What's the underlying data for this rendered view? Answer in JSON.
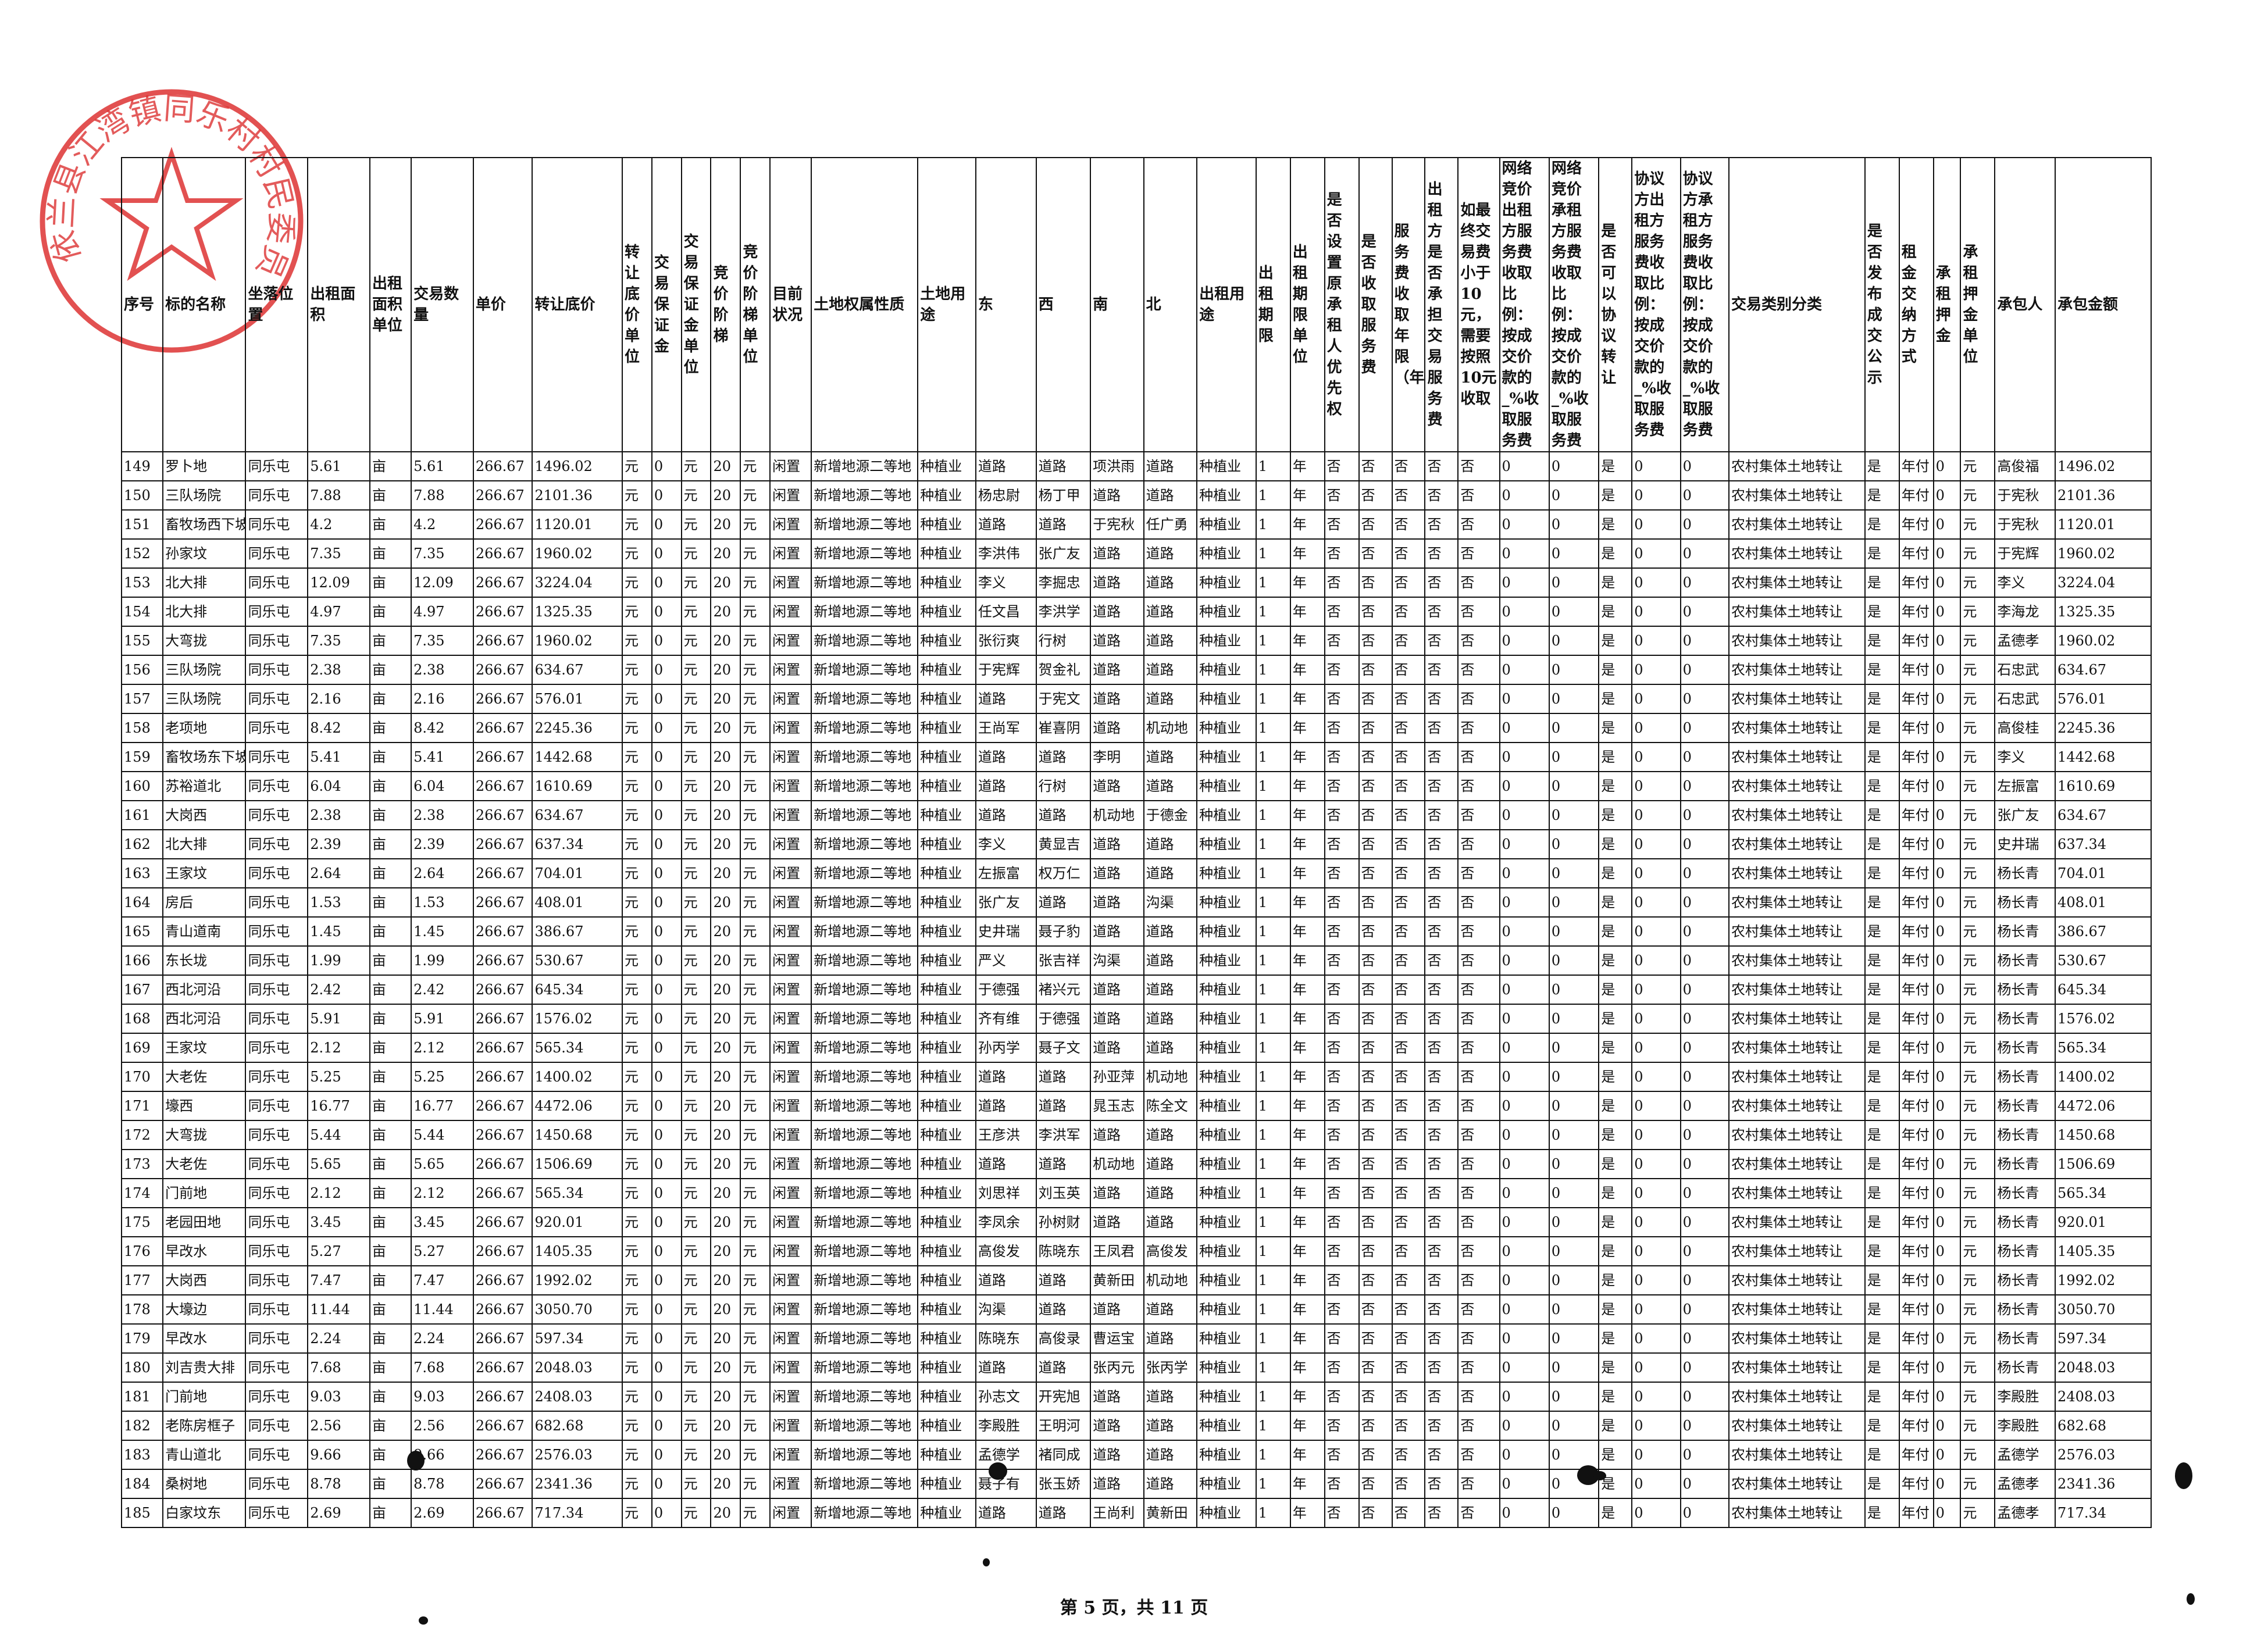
{
  "headers": [
    "序号",
    "标的名称",
    "坐落位置",
    "出租面积",
    "出租面积单位",
    "交易数量",
    "单价",
    "转让底价",
    "转让底价单位",
    "交易保证金",
    "交易保证金单位",
    "竞价阶梯",
    "竞价阶梯单位",
    "目前状况",
    "土地权属性质",
    "土地用途",
    "东",
    "西",
    "南",
    "北",
    "出租用途",
    "出租期限",
    "出租期限单位",
    "是否设置原承租人优先权",
    "是否收取服务费",
    "服务费收取年限（年）",
    "出租方是否承担交易服务费",
    "如最终交易费小于10元，需要按照10元收取",
    "网络竞价出租方服务费收取比例：按成交价款的_%收取服务费",
    "网络竞价承租方服务费收取比例：按成交价款的_%收取服务费",
    "是否可以协议转让",
    "协议方出租方服务费收取比例：按成交价款的_%收取服务费",
    "协议方承租方服务费收取比例：按成交价款的_%收取服务费",
    "交易类别分类",
    "是否发布成交公示",
    "租金交纳方式",
    "承租押金",
    "承租押金单位",
    "承包人",
    "承包金额"
  ],
  "common": {
    "loc": "同乐屯",
    "unit": "亩",
    "price": "266.67",
    "yuan": "元",
    "zero": "0",
    "twenty": "20",
    "status": "闲置",
    "nature": "新增地源二等地",
    "use": "种植业",
    "one": "1",
    "year": "年",
    "no": "否",
    "yes": "是",
    "category": "农村集体土地转让",
    "pay": "年付"
  },
  "rows": [
    [
      "149",
      "罗卜地",
      "5.61",
      "1496.02",
      "道路",
      "道路",
      "项洪雨",
      "道路",
      "高俊福"
    ],
    [
      "150",
      "三队场院",
      "7.88",
      "2101.36",
      "杨忠尉",
      "杨丁甲",
      "道路",
      "道路",
      "于宪秋"
    ],
    [
      "151",
      "畜牧场西下坡",
      "4.2",
      "1120.01",
      "道路",
      "道路",
      "于宪秋",
      "任广勇",
      "于宪秋"
    ],
    [
      "152",
      "孙家坟",
      "7.35",
      "1960.02",
      "李洪伟",
      "张广友",
      "道路",
      "道路",
      "于宪辉"
    ],
    [
      "153",
      "北大排",
      "12.09",
      "3224.04",
      "李义",
      "李掘忠",
      "道路",
      "道路",
      "李义"
    ],
    [
      "154",
      "北大排",
      "4.97",
      "1325.35",
      "任文昌",
      "李洪学",
      "道路",
      "道路",
      "李海龙"
    ],
    [
      "155",
      "大弯拢",
      "7.35",
      "1960.02",
      "张衍爽",
      "行树",
      "道路",
      "道路",
      "孟德孝"
    ],
    [
      "156",
      "三队场院",
      "2.38",
      "634.67",
      "于宪辉",
      "贺金礼",
      "道路",
      "道路",
      "石忠武"
    ],
    [
      "157",
      "三队场院",
      "2.16",
      "576.01",
      "道路",
      "于宪文",
      "道路",
      "道路",
      "石忠武"
    ],
    [
      "158",
      "老项地",
      "8.42",
      "2245.36",
      "王尚军",
      "崔喜阴",
      "道路",
      "机动地",
      "高俊桂"
    ],
    [
      "159",
      "畜牧场东下坡",
      "5.41",
      "1442.68",
      "道路",
      "道路",
      "李明",
      "道路",
      "李义"
    ],
    [
      "160",
      "苏裕道北",
      "6.04",
      "1610.69",
      "道路",
      "行树",
      "道路",
      "道路",
      "左振富"
    ],
    [
      "161",
      "大岗西",
      "2.38",
      "634.67",
      "道路",
      "道路",
      "机动地",
      "于德金",
      "张广友"
    ],
    [
      "162",
      "北大排",
      "2.39",
      "637.34",
      "李义",
      "黄显吉",
      "道路",
      "道路",
      "史井瑞"
    ],
    [
      "163",
      "王家坟",
      "2.64",
      "704.01",
      "左振富",
      "权万仁",
      "道路",
      "道路",
      "杨长青"
    ],
    [
      "164",
      "房后",
      "1.53",
      "408.01",
      "张广友",
      "道路",
      "道路",
      "沟渠",
      "杨长青"
    ],
    [
      "165",
      "青山道南",
      "1.45",
      "386.67",
      "史井瑞",
      "聂子豹",
      "道路",
      "道路",
      "杨长青"
    ],
    [
      "166",
      "东长垅",
      "1.99",
      "530.67",
      "严义",
      "张吉祥",
      "沟渠",
      "道路",
      "杨长青"
    ],
    [
      "167",
      "西北河沿",
      "2.42",
      "645.34",
      "于德强",
      "褚兴元",
      "道路",
      "道路",
      "杨长青"
    ],
    [
      "168",
      "西北河沿",
      "5.91",
      "1576.02",
      "齐有维",
      "于德强",
      "道路",
      "道路",
      "杨长青"
    ],
    [
      "169",
      "王家坟",
      "2.12",
      "565.34",
      "孙丙学",
      "聂子文",
      "道路",
      "道路",
      "杨长青"
    ],
    [
      "170",
      "大老佐",
      "5.25",
      "1400.02",
      "道路",
      "道路",
      "孙亚萍",
      "机动地",
      "杨长青"
    ],
    [
      "171",
      "壕西",
      "16.77",
      "4472.06",
      "道路",
      "道路",
      "晁玉志",
      "陈全文",
      "杨长青"
    ],
    [
      "172",
      "大弯拢",
      "5.44",
      "1450.68",
      "王彦洪",
      "李洪军",
      "道路",
      "道路",
      "杨长青"
    ],
    [
      "173",
      "大老佐",
      "5.65",
      "1506.69",
      "道路",
      "道路",
      "机动地",
      "道路",
      "杨长青"
    ],
    [
      "174",
      "门前地",
      "2.12",
      "565.34",
      "刘思祥",
      "刘玉英",
      "道路",
      "道路",
      "杨长青"
    ],
    [
      "175",
      "老园田地",
      "3.45",
      "920.01",
      "李凤余",
      "孙树财",
      "道路",
      "道路",
      "杨长青"
    ],
    [
      "176",
      "早改水",
      "5.27",
      "1405.35",
      "高俊发",
      "陈晓东",
      "王凤君",
      "高俊发",
      "杨长青"
    ],
    [
      "177",
      "大岗西",
      "7.47",
      "1992.02",
      "道路",
      "道路",
      "黄新田",
      "机动地",
      "杨长青"
    ],
    [
      "178",
      "大壕边",
      "11.44",
      "3050.70",
      "沟渠",
      "道路",
      "道路",
      "道路",
      "杨长青"
    ],
    [
      "179",
      "早改水",
      "2.24",
      "597.34",
      "陈晓东",
      "高俊录",
      "曹运宝",
      "道路",
      "杨长青"
    ],
    [
      "180",
      "刘吉贵大排",
      "7.68",
      "2048.03",
      "道路",
      "道路",
      "张丙元",
      "张丙学",
      "杨长青"
    ],
    [
      "181",
      "门前地",
      "9.03",
      "2408.03",
      "孙志文",
      "开宪旭",
      "道路",
      "道路",
      "李殿胜"
    ],
    [
      "182",
      "老陈房框子",
      "2.56",
      "682.68",
      "李殿胜",
      "王明河",
      "道路",
      "道路",
      "李殿胜"
    ],
    [
      "183",
      "青山道北",
      "9.66",
      "2576.03",
      "孟德学",
      "褚同成",
      "道路",
      "道路",
      "孟德学"
    ],
    [
      "184",
      "桑树地",
      "8.78",
      "2341.36",
      "聂子有",
      "张玉娇",
      "道路",
      "道路",
      "孟德孝"
    ],
    [
      "185",
      "白家坟东",
      "2.69",
      "717.34",
      "道路",
      "道路",
      "王尚利",
      "黄新田",
      "孟德孝"
    ]
  ],
  "seal": {
    "text": "依兰县江湾镇同乐村村民委员会"
  },
  "footer": "第 5 页，共 11 页"
}
